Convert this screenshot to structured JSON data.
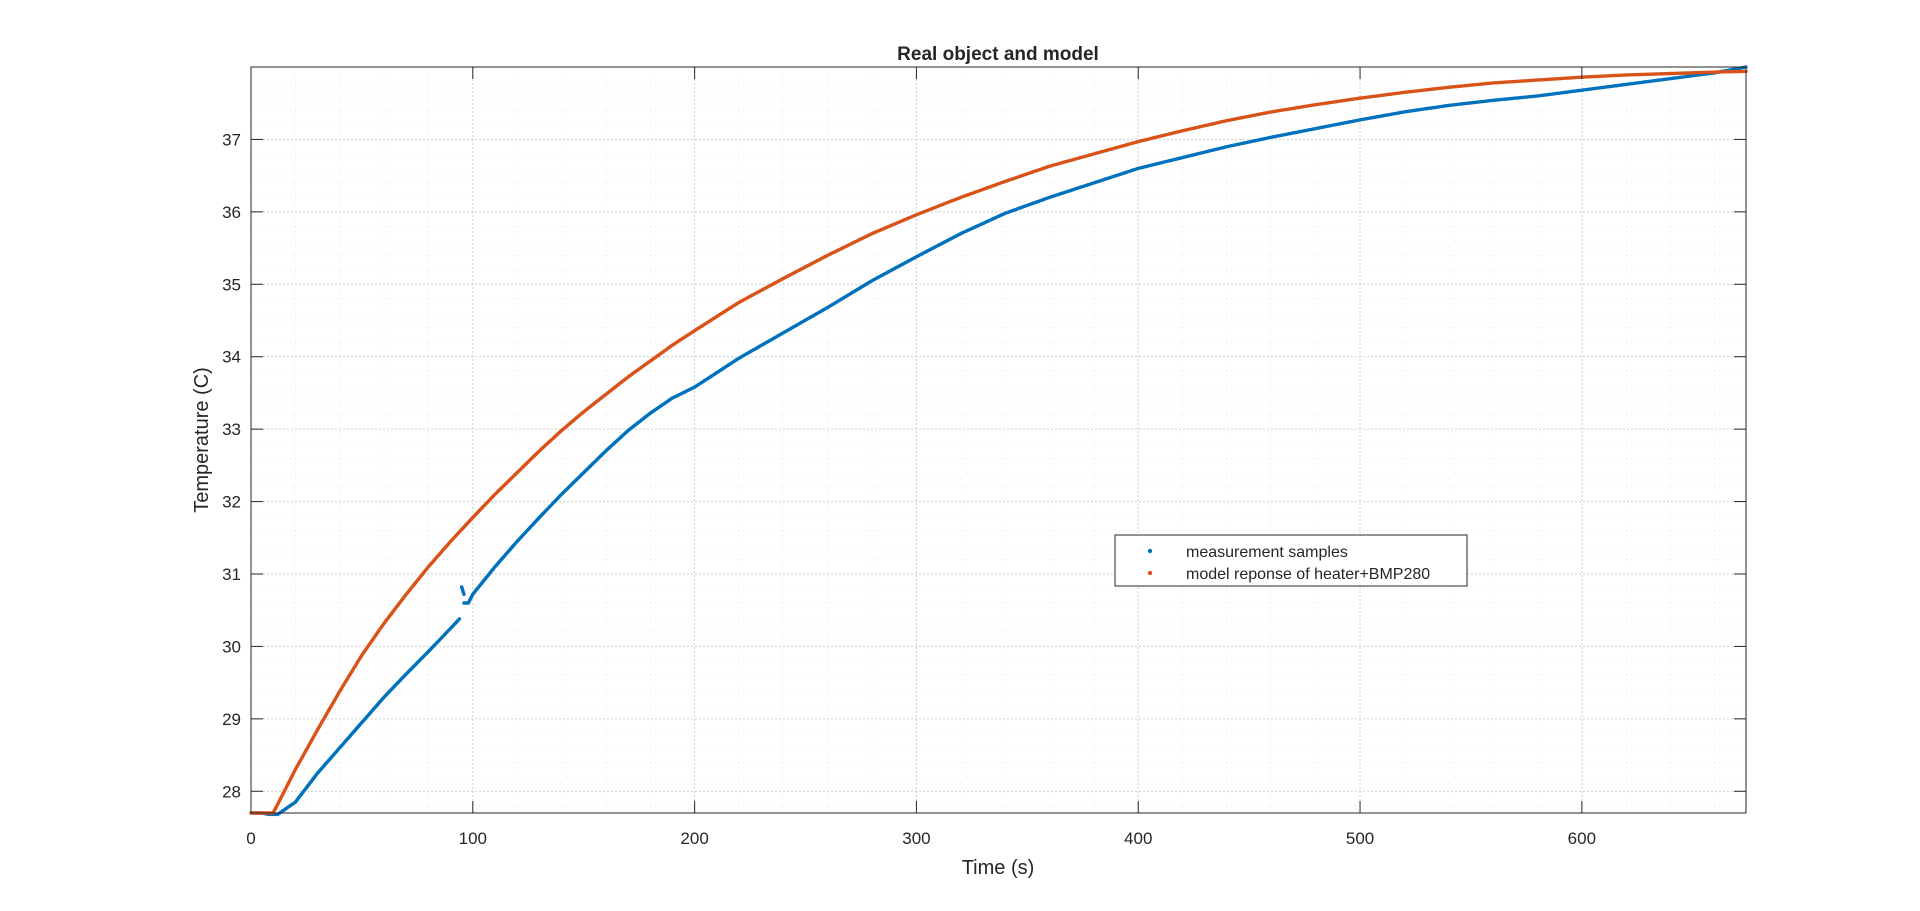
{
  "chart_data": {
    "type": "scatter",
    "title": "Real object and model",
    "xlabel": "Time (s)",
    "ylabel": "Temperature (C)",
    "xlim": [
      0,
      674
    ],
    "ylim": [
      27.7,
      38
    ],
    "xticks": [
      0,
      100,
      200,
      300,
      400,
      500,
      600
    ],
    "yticks": [
      28,
      29,
      30,
      31,
      32,
      33,
      34,
      35,
      36,
      37
    ],
    "grid": "major and minor, dotted",
    "legend_position": "center-right",
    "series": [
      {
        "name": "measurement samples",
        "color": "#0072BD",
        "marker": "dot",
        "segments": [
          {
            "x": [
              0,
              5,
              8,
              12,
              20,
              30,
              40,
              50,
              60,
              70,
              80,
              90,
              94
            ],
            "y": [
              27.7,
              27.7,
              27.68,
              27.68,
              27.85,
              28.25,
              28.6,
              28.95,
              29.3,
              29.62,
              29.93,
              30.25,
              30.38
            ]
          },
          {
            "x": [
              96,
              98,
              100,
              110,
              120,
              130,
              140,
              150,
              160,
              170,
              180,
              190,
              200,
              220,
              240,
              260,
              280,
              300,
              320,
              340,
              360,
              380,
              400,
              420,
              440,
              460,
              480,
              500,
              520,
              540,
              560,
              580,
              600,
              620,
              640,
              660,
              674
            ],
            "y": [
              30.6,
              30.6,
              30.72,
              31.1,
              31.45,
              31.78,
              32.1,
              32.4,
              32.7,
              32.98,
              33.22,
              33.43,
              33.58,
              33.98,
              34.33,
              34.68,
              35.05,
              35.38,
              35.7,
              35.98,
              36.2,
              36.4,
              36.6,
              36.75,
              36.9,
              37.03,
              37.15,
              37.27,
              37.38,
              37.47,
              37.54,
              37.6,
              37.68,
              37.76,
              37.84,
              37.92,
              38.0
            ]
          },
          {
            "x": [
              95,
              96
            ],
            "y": [
              30.82,
              30.72
            ]
          }
        ]
      },
      {
        "name": "model reponse of heater+BMP280",
        "color": "#D95319",
        "marker": "dot",
        "segments": [
          {
            "x": [
              0,
              5,
              10,
              20,
              30,
              40,
              50,
              60,
              70,
              80,
              90,
              100,
              110,
              120,
              130,
              140,
              150,
              160,
              170,
              180,
              190,
              200,
              220,
              240,
              260,
              280,
              300,
              320,
              340,
              360,
              380,
              400,
              420,
              440,
              460,
              480,
              500,
              520,
              540,
              560,
              580,
              600,
              620,
              640,
              660,
              674
            ],
            "y": [
              27.7,
              27.7,
              27.7,
              28.3,
              28.85,
              29.38,
              29.88,
              30.32,
              30.72,
              31.1,
              31.45,
              31.78,
              32.1,
              32.4,
              32.7,
              32.98,
              33.24,
              33.48,
              33.72,
              33.94,
              34.16,
              34.36,
              34.75,
              35.08,
              35.4,
              35.7,
              35.96,
              36.2,
              36.42,
              36.63,
              36.8,
              36.97,
              37.12,
              37.26,
              37.38,
              37.48,
              37.57,
              37.65,
              37.72,
              37.78,
              37.82,
              37.86,
              37.89,
              37.91,
              37.93,
              37.94
            ]
          }
        ]
      }
    ]
  }
}
